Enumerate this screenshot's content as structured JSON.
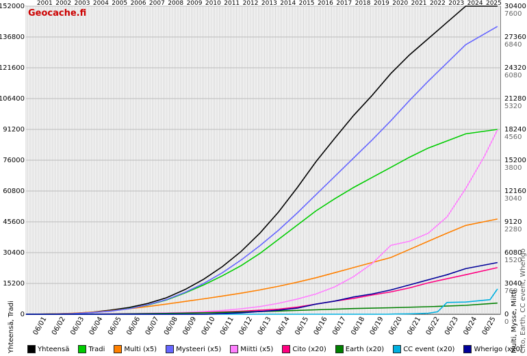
{
  "chart_data": {
    "type": "line",
    "brand": "Geocache.fi",
    "years": [
      "2001",
      "2002",
      "2003",
      "2004",
      "2005",
      "2006",
      "2007",
      "2008",
      "2009",
      "2010",
      "2011",
      "2012",
      "2013",
      "2014",
      "2015",
      "2016",
      "2017",
      "2018",
      "2019",
      "2020",
      "2021",
      "2022",
      "2023",
      "2024",
      "2025"
    ],
    "x_tick_labels": [
      "06/01",
      "06/02",
      "06/03",
      "06/04",
      "06/05",
      "06/06",
      "06/07",
      "06/08",
      "06/09",
      "06/10",
      "06/11",
      "06/12",
      "06/13",
      "06/14",
      "06/15",
      "06/16",
      "06/17",
      "06/18",
      "06/19",
      "06/20",
      "06/21",
      "06/22",
      "06/23",
      "06/24",
      "06/25"
    ],
    "ylabel_left": "Yhteensä, Tradi",
    "ylabel_right": "Multi, Mysse, Miitti",
    "ylabel_right2": "Cito, Earth, CC event, Wherigo",
    "y_left_ticks": [
      0,
      15200,
      30400,
      45600,
      60800,
      76000,
      91200,
      106400,
      121600,
      136800,
      152000
    ],
    "y_right_ticks": [
      0,
      3040,
      6080,
      9120,
      12160,
      15200,
      18240,
      21280,
      24320,
      27360,
      30400
    ],
    "y_right2_ticks": [
      0,
      760,
      1520,
      2280,
      3040,
      3800,
      4560,
      5320,
      6080,
      6840,
      7600
    ],
    "ylim": [
      0,
      152000
    ],
    "xlim": [
      2000.5,
      2025.85
    ],
    "series": [
      {
        "name": "Yhteensä",
        "color": "#000000",
        "points": [
          [
            2000.5,
            0
          ],
          [
            2002,
            150
          ],
          [
            2003,
            400
          ],
          [
            2004,
            1000
          ],
          [
            2005,
            2000
          ],
          [
            2006,
            3300
          ],
          [
            2007,
            5300
          ],
          [
            2008,
            8100
          ],
          [
            2009,
            12200
          ],
          [
            2010,
            17300
          ],
          [
            2011,
            23500
          ],
          [
            2012,
            31000
          ],
          [
            2013,
            40000
          ],
          [
            2014,
            50500
          ],
          [
            2015,
            62500
          ],
          [
            2016,
            75300
          ],
          [
            2017,
            86800
          ],
          [
            2018,
            98000
          ],
          [
            2019,
            108000
          ],
          [
            2020,
            118800
          ],
          [
            2021,
            128000
          ],
          [
            2022,
            136000
          ],
          [
            2023,
            144000
          ],
          [
            2024,
            152000
          ],
          [
            2025.7,
            152000
          ]
        ]
      },
      {
        "name": "Tradi",
        "color": "#00cc00",
        "points": [
          [
            2000.5,
            0
          ],
          [
            2002,
            100
          ],
          [
            2003,
            300
          ],
          [
            2004,
            800
          ],
          [
            2005,
            1600
          ],
          [
            2006,
            2800
          ],
          [
            2007,
            4500
          ],
          [
            2008,
            7000
          ],
          [
            2009,
            10500
          ],
          [
            2010,
            14500
          ],
          [
            2011,
            19000
          ],
          [
            2012,
            24000
          ],
          [
            2013,
            30000
          ],
          [
            2014,
            37000
          ],
          [
            2015,
            44000
          ],
          [
            2016,
            51000
          ],
          [
            2017,
            57000
          ],
          [
            2018,
            62500
          ],
          [
            2019,
            67500
          ],
          [
            2020,
            72500
          ],
          [
            2021,
            77500
          ],
          [
            2022,
            82000
          ],
          [
            2023,
            85500
          ],
          [
            2024,
            89000
          ],
          [
            2025.7,
            91200
          ]
        ]
      },
      {
        "name": "Multi (x5)",
        "color": "#ff8000",
        "points": [
          [
            2000.5,
            0
          ],
          [
            2002,
            200
          ],
          [
            2003,
            500
          ],
          [
            2004,
            1000
          ],
          [
            2005,
            1700
          ],
          [
            2006,
            2700
          ],
          [
            2007,
            3800
          ],
          [
            2008,
            5000
          ],
          [
            2009,
            6300
          ],
          [
            2010,
            7600
          ],
          [
            2011,
            9000
          ],
          [
            2012,
            10400
          ],
          [
            2013,
            12000
          ],
          [
            2014,
            13800
          ],
          [
            2015,
            15800
          ],
          [
            2016,
            18000
          ],
          [
            2017,
            20500
          ],
          [
            2018,
            23000
          ],
          [
            2019,
            25500
          ],
          [
            2020,
            28000
          ],
          [
            2021,
            32000
          ],
          [
            2022,
            36000
          ],
          [
            2023,
            40000
          ],
          [
            2024,
            43800
          ],
          [
            2025.7,
            47000
          ]
        ]
      },
      {
        "name": "Mysteeri (x5)",
        "color": "#6666ff",
        "points": [
          [
            2000.5,
            0
          ],
          [
            2002,
            100
          ],
          [
            2003,
            300
          ],
          [
            2004,
            800
          ],
          [
            2005,
            1500
          ],
          [
            2006,
            2700
          ],
          [
            2007,
            4600
          ],
          [
            2008,
            7200
          ],
          [
            2009,
            10800
          ],
          [
            2010,
            15200
          ],
          [
            2011,
            20500
          ],
          [
            2012,
            26800
          ],
          [
            2013,
            33800
          ],
          [
            2014,
            41500
          ],
          [
            2015,
            50000
          ],
          [
            2016,
            59000
          ],
          [
            2017,
            68000
          ],
          [
            2018,
            77000
          ],
          [
            2019,
            86000
          ],
          [
            2020,
            95500
          ],
          [
            2021,
            105500
          ],
          [
            2022,
            115000
          ],
          [
            2023,
            124000
          ],
          [
            2024,
            133000
          ],
          [
            2025.7,
            142000
          ]
        ]
      },
      {
        "name": "Miitti (x5)",
        "color": "#ff80ff",
        "points": [
          [
            2000.5,
            0
          ],
          [
            2003,
            50
          ],
          [
            2005,
            200
          ],
          [
            2007,
            500
          ],
          [
            2009,
            900
          ],
          [
            2010,
            1300
          ],
          [
            2011,
            1900
          ],
          [
            2012,
            2700
          ],
          [
            2013,
            3800
          ],
          [
            2014,
            5400
          ],
          [
            2015,
            7500
          ],
          [
            2016,
            10000
          ],
          [
            2017,
            13500
          ],
          [
            2018,
            18500
          ],
          [
            2019,
            25000
          ],
          [
            2020,
            34000
          ],
          [
            2021,
            36000
          ],
          [
            2022,
            40000
          ],
          [
            2023,
            48000
          ],
          [
            2024,
            62000
          ],
          [
            2025,
            78000
          ],
          [
            2025.7,
            91000
          ]
        ]
      },
      {
        "name": "Cito (x20)",
        "color": "#ff0080",
        "points": [
          [
            2000.5,
            0
          ],
          [
            2005,
            100
          ],
          [
            2008,
            400
          ],
          [
            2010,
            800
          ],
          [
            2012,
            1500
          ],
          [
            2014,
            2500
          ],
          [
            2015,
            3500
          ],
          [
            2016,
            5000
          ],
          [
            2017,
            6500
          ],
          [
            2018,
            7800
          ],
          [
            2019,
            9500
          ],
          [
            2020,
            11000
          ],
          [
            2021,
            13000
          ],
          [
            2022,
            15500
          ],
          [
            2023,
            17500
          ],
          [
            2024,
            19500
          ],
          [
            2025.7,
            23000
          ]
        ]
      },
      {
        "name": "Earth (x20)",
        "color": "#008000",
        "points": [
          [
            2000.5,
            0
          ],
          [
            2005,
            100
          ],
          [
            2008,
            400
          ],
          [
            2010,
            700
          ],
          [
            2012,
            1100
          ],
          [
            2014,
            1600
          ],
          [
            2016,
            2200
          ],
          [
            2018,
            2800
          ],
          [
            2020,
            3200
          ],
          [
            2022,
            3700
          ],
          [
            2024,
            4400
          ],
          [
            2025.7,
            5500
          ]
        ]
      },
      {
        "name": "CC event (x20)",
        "color": "#00b0e0",
        "points": [
          [
            2000.5,
            0
          ],
          [
            2019.8,
            0
          ],
          [
            2020.2,
            100
          ],
          [
            2021,
            200
          ],
          [
            2022,
            500
          ],
          [
            2022.5,
            1200
          ],
          [
            2023,
            5800
          ],
          [
            2024,
            6000
          ],
          [
            2025.3,
            7200
          ],
          [
            2025.7,
            12500
          ]
        ]
      },
      {
        "name": "Wherigo (x20)",
        "color": "#000099",
        "points": [
          [
            2000.5,
            0
          ],
          [
            2010,
            0
          ],
          [
            2012,
            700
          ],
          [
            2014,
            2000
          ],
          [
            2015,
            3000
          ],
          [
            2016,
            5000
          ],
          [
            2017,
            6500
          ],
          [
            2018,
            8500
          ],
          [
            2019,
            10000
          ],
          [
            2020,
            12000
          ],
          [
            2021,
            14500
          ],
          [
            2022,
            17000
          ],
          [
            2023,
            19500
          ],
          [
            2024,
            22500
          ],
          [
            2025.7,
            25500
          ]
        ]
      }
    ]
  }
}
